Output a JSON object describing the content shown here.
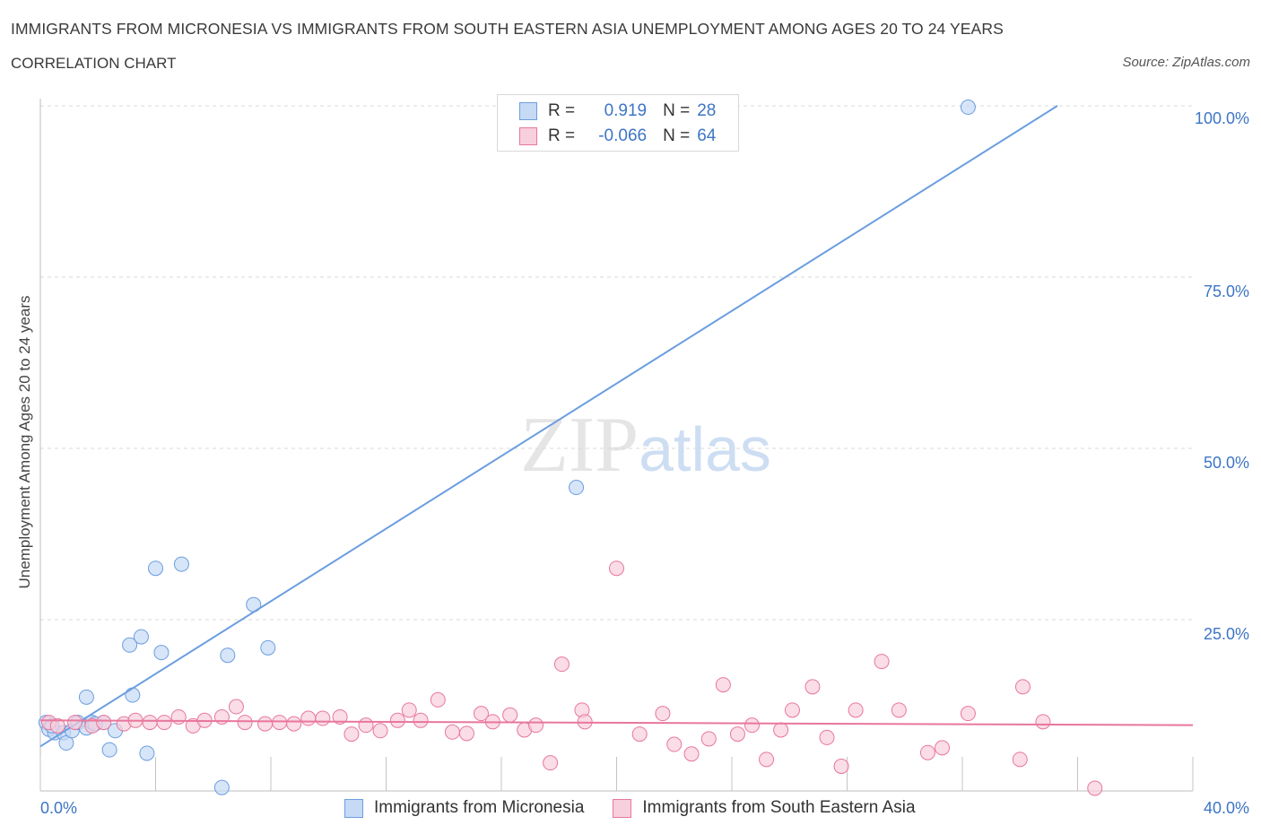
{
  "chart_data": {
    "type": "scatter",
    "title": "IMMIGRANTS FROM MICRONESIA VS IMMIGRANTS FROM SOUTH EASTERN ASIA UNEMPLOYMENT AMONG AGES 20 TO 24 YEARS",
    "subtitle": "CORRELATION CHART",
    "source": "Source: ZipAtlas.com",
    "watermark": "ZIPatlas",
    "ylabel": "Unemployment Among Ages 20 to 24 years",
    "xlim": [
      0,
      40
    ],
    "ylim": [
      0,
      100
    ],
    "x_tick_labels": {
      "min": "0.0%",
      "max": "40.0%"
    },
    "y_ticks": [
      {
        "value": 25,
        "label": "25.0%"
      },
      {
        "value": 50,
        "label": "50.0%"
      },
      {
        "value": 75,
        "label": "75.0%"
      },
      {
        "value": 100,
        "label": "100.0%"
      }
    ],
    "grid": true,
    "legend": {
      "r_label": "R =",
      "n_label": "N =",
      "entries": [
        {
          "r": "0.919",
          "n": "28"
        },
        {
          "r": "-0.066",
          "n": "64"
        }
      ]
    },
    "series": [
      {
        "name": "Immigrants from Micronesia",
        "color": "#6b9ee0",
        "fill": "#c6daf5",
        "trend": {
          "x1": 0,
          "y1": 6.5,
          "x2": 35.3,
          "y2": 100
        },
        "points": [
          {
            "x": 0.2,
            "y": 10.0
          },
          {
            "x": 0.3,
            "y": 9.0
          },
          {
            "x": 0.5,
            "y": 8.5
          },
          {
            "x": 0.8,
            "y": 8.5
          },
          {
            "x": 0.9,
            "y": 7.0
          },
          {
            "x": 1.1,
            "y": 8.8
          },
          {
            "x": 1.3,
            "y": 10.0
          },
          {
            "x": 1.6,
            "y": 9.2
          },
          {
            "x": 1.6,
            "y": 13.7
          },
          {
            "x": 1.8,
            "y": 10.0
          },
          {
            "x": 2.2,
            "y": 10.0
          },
          {
            "x": 2.4,
            "y": 6.0
          },
          {
            "x": 2.6,
            "y": 8.8
          },
          {
            "x": 3.1,
            "y": 21.3
          },
          {
            "x": 3.2,
            "y": 14.0
          },
          {
            "x": 3.5,
            "y": 22.5
          },
          {
            "x": 3.7,
            "y": 5.5
          },
          {
            "x": 4.0,
            "y": 32.5
          },
          {
            "x": 4.2,
            "y": 20.2
          },
          {
            "x": 4.9,
            "y": 33.1
          },
          {
            "x": 6.3,
            "y": 0.5
          },
          {
            "x": 6.5,
            "y": 19.8
          },
          {
            "x": 7.4,
            "y": 27.2
          },
          {
            "x": 7.9,
            "y": 20.9
          },
          {
            "x": 18.6,
            "y": 44.3
          },
          {
            "x": 32.2,
            "y": 99.8
          },
          {
            "x": 0.4,
            "y": 9.5
          },
          {
            "x": 1.9,
            "y": 9.8
          }
        ]
      },
      {
        "name": "Immigrants from South Eastern Asia",
        "color": "#e8779c",
        "fill": "#f8cfdc",
        "trend": {
          "x1": 0,
          "y1": 10.3,
          "x2": 40,
          "y2": 9.6
        },
        "points": [
          {
            "x": 0.3,
            "y": 10.0
          },
          {
            "x": 0.6,
            "y": 9.5
          },
          {
            "x": 1.2,
            "y": 10.0
          },
          {
            "x": 1.8,
            "y": 9.5
          },
          {
            "x": 2.2,
            "y": 10.0
          },
          {
            "x": 2.9,
            "y": 9.8
          },
          {
            "x": 3.3,
            "y": 10.3
          },
          {
            "x": 3.8,
            "y": 10.0
          },
          {
            "x": 4.3,
            "y": 10.0
          },
          {
            "x": 4.8,
            "y": 10.8
          },
          {
            "x": 5.3,
            "y": 9.5
          },
          {
            "x": 5.7,
            "y": 10.3
          },
          {
            "x": 6.3,
            "y": 10.8
          },
          {
            "x": 6.8,
            "y": 12.3
          },
          {
            "x": 7.1,
            "y": 10.0
          },
          {
            "x": 7.8,
            "y": 9.8
          },
          {
            "x": 8.3,
            "y": 10.0
          },
          {
            "x": 8.8,
            "y": 9.8
          },
          {
            "x": 9.3,
            "y": 10.6
          },
          {
            "x": 9.8,
            "y": 10.6
          },
          {
            "x": 10.4,
            "y": 10.8
          },
          {
            "x": 10.8,
            "y": 8.3
          },
          {
            "x": 11.3,
            "y": 9.6
          },
          {
            "x": 11.8,
            "y": 8.8
          },
          {
            "x": 12.4,
            "y": 10.3
          },
          {
            "x": 12.8,
            "y": 11.8
          },
          {
            "x": 13.2,
            "y": 10.3
          },
          {
            "x": 13.8,
            "y": 13.3
          },
          {
            "x": 14.3,
            "y": 8.6
          },
          {
            "x": 14.8,
            "y": 8.4
          },
          {
            "x": 15.3,
            "y": 11.3
          },
          {
            "x": 15.7,
            "y": 10.1
          },
          {
            "x": 16.3,
            "y": 11.1
          },
          {
            "x": 16.8,
            "y": 8.9
          },
          {
            "x": 17.2,
            "y": 9.6
          },
          {
            "x": 17.7,
            "y": 4.1
          },
          {
            "x": 18.1,
            "y": 18.5
          },
          {
            "x": 18.8,
            "y": 11.8
          },
          {
            "x": 18.9,
            "y": 10.1
          },
          {
            "x": 20.0,
            "y": 32.5
          },
          {
            "x": 20.8,
            "y": 8.3
          },
          {
            "x": 21.6,
            "y": 11.3
          },
          {
            "x": 22.0,
            "y": 6.8
          },
          {
            "x": 22.6,
            "y": 5.4
          },
          {
            "x": 23.2,
            "y": 7.6
          },
          {
            "x": 23.7,
            "y": 15.5
          },
          {
            "x": 24.2,
            "y": 8.3
          },
          {
            "x": 24.7,
            "y": 9.6
          },
          {
            "x": 25.2,
            "y": 4.6
          },
          {
            "x": 25.7,
            "y": 8.9
          },
          {
            "x": 26.1,
            "y": 11.8
          },
          {
            "x": 26.8,
            "y": 15.2
          },
          {
            "x": 27.3,
            "y": 7.8
          },
          {
            "x": 27.8,
            "y": 3.6
          },
          {
            "x": 28.3,
            "y": 11.8
          },
          {
            "x": 29.2,
            "y": 18.9
          },
          {
            "x": 29.8,
            "y": 11.8
          },
          {
            "x": 30.8,
            "y": 5.6
          },
          {
            "x": 31.3,
            "y": 6.3
          },
          {
            "x": 32.2,
            "y": 11.3
          },
          {
            "x": 34.0,
            "y": 4.6
          },
          {
            "x": 34.1,
            "y": 15.2
          },
          {
            "x": 34.8,
            "y": 10.1
          },
          {
            "x": 36.6,
            "y": 0.4
          }
        ]
      }
    ]
  }
}
